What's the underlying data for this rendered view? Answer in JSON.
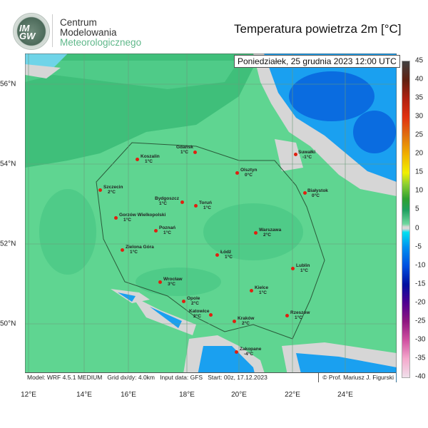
{
  "header": {
    "logo_text": "IMGW",
    "org_line1": "Centrum",
    "org_line2": "Modelowania",
    "org_line3": "Meteorologicznego",
    "title": "Temperatura powietrza 2m [°C]",
    "valid_time": "Poniedziałek, 25 grudnia 2023 12:00 UTC"
  },
  "footer": {
    "model_info": "Model: WRF 4.5.1 MEDIUM   Grid dx/dy: 4.0km   Input data: GFS   Start: 00z, 17.12.2023",
    "copyright": "© Prof. Mariusz J. Figurski"
  },
  "lon_labels": [
    "12°E",
    "14°E",
    "16°E",
    "18°E",
    "20°E",
    "22°E",
    "24°E"
  ],
  "lat_labels": [
    "56°N",
    "54°N",
    "52°N",
    "50°N"
  ],
  "colorbar": {
    "unit": "°C",
    "range": [
      -40,
      45
    ],
    "ticks": [
      "45",
      "40",
      "35",
      "30",
      "25",
      "20",
      "15",
      "10",
      "5",
      "0",
      "-5",
      "-10",
      "-15",
      "-20",
      "-25",
      "-30",
      "-35",
      "-40"
    ]
  },
  "colors": {
    "land_base": "#5fd591",
    "sea": "#3fbf7a",
    "cold": "#1aa0f0",
    "freezing": "#d6d6d6",
    "city_dot": "#e02010"
  },
  "cities": [
    {
      "name": "Koszalin",
      "temp": "1°C"
    },
    {
      "name": "Gdańsk",
      "temp": "1°C"
    },
    {
      "name": "Szczecin",
      "temp": "2°C"
    },
    {
      "name": "Bydgoszcz",
      "temp": "1°C"
    },
    {
      "name": "Toruń",
      "temp": "1°C"
    },
    {
      "name": "Gorzów Wielkopolski",
      "temp": "1°C"
    },
    {
      "name": "Poznań",
      "temp": "1°C"
    },
    {
      "name": "Zielona Góra",
      "temp": "1°C"
    },
    {
      "name": "Olsztyn",
      "temp": "0°C"
    },
    {
      "name": "Suwałki",
      "temp": "-1°C"
    },
    {
      "name": "Białystok",
      "temp": "0°C"
    },
    {
      "name": "Warszawa",
      "temp": "2°C"
    },
    {
      "name": "Łódź",
      "temp": "1°C"
    },
    {
      "name": "Lublin",
      "temp": "1°C"
    },
    {
      "name": "Wrocław",
      "temp": "3°C"
    },
    {
      "name": "Opole",
      "temp": "2°C"
    },
    {
      "name": "Katowice",
      "temp": "2°C"
    },
    {
      "name": "Kielce",
      "temp": "1°C"
    },
    {
      "name": "Kraków",
      "temp": "2°C"
    },
    {
      "name": "Rzeszów",
      "temp": "1°C"
    },
    {
      "name": "Zakopane",
      "temp": "-4°C"
    }
  ]
}
